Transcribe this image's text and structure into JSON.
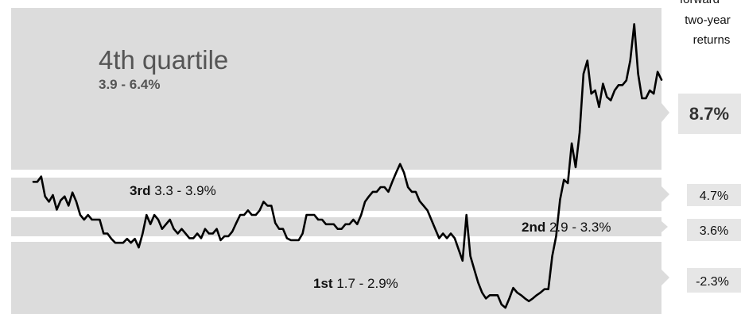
{
  "chart_data": {
    "type": "line",
    "header": [
      "forward",
      "two-year",
      "returns"
    ],
    "quartiles": [
      {
        "name": "4th quartile",
        "range": "3.9 - 6.4%",
        "return": "8.7%"
      },
      {
        "name": "3rd",
        "range": "3.3 - 3.9%",
        "return": "4.7%"
      },
      {
        "name": "2nd",
        "range": "2.9 - 3.3%",
        "return": "3.6%"
      },
      {
        "name": "1st",
        "range": "1.7 - 2.9%",
        "return": "-2.3%"
      }
    ],
    "series": [
      {
        "values": [
          4.02,
          4.02,
          4.1,
          3.8,
          3.72,
          3.82,
          3.6,
          3.74,
          3.8,
          3.66,
          3.86,
          3.72,
          3.52,
          3.45,
          3.52,
          3.45,
          3.45,
          3.45,
          3.24,
          3.24,
          3.16,
          3.1,
          3.1,
          3.1,
          3.16,
          3.1,
          3.16,
          3.03,
          3.24,
          3.52,
          3.38,
          3.52,
          3.45,
          3.31,
          3.38,
          3.45,
          3.31,
          3.24,
          3.31,
          3.24,
          3.17,
          3.17,
          3.24,
          3.17,
          3.31,
          3.24,
          3.24,
          3.31,
          3.14,
          3.2,
          3.2,
          3.27,
          3.4,
          3.52,
          3.52,
          3.59,
          3.52,
          3.52,
          3.59,
          3.72,
          3.66,
          3.66,
          3.4,
          3.31,
          3.31,
          3.17,
          3.14,
          3.14,
          3.14,
          3.24,
          3.52,
          3.52,
          3.52,
          3.45,
          3.45,
          3.38,
          3.38,
          3.38,
          3.31,
          3.31,
          3.38,
          3.38,
          3.45,
          3.38,
          3.52,
          3.72,
          3.8,
          3.87,
          3.87,
          3.94,
          3.94,
          3.87,
          4.02,
          4.16,
          4.29,
          4.16,
          3.94,
          3.87,
          3.87,
          3.73,
          3.66,
          3.59,
          3.45,
          3.31,
          3.17,
          3.24,
          3.17,
          3.24,
          3.17,
          3.0,
          2.83,
          3.52,
          2.9,
          2.7,
          2.5,
          2.35,
          2.26,
          2.31,
          2.31,
          2.31,
          2.17,
          2.12,
          2.26,
          2.42,
          2.35,
          2.31,
          2.26,
          2.22,
          2.26,
          2.31,
          2.35,
          2.4,
          2.4,
          2.9,
          3.2,
          3.75,
          4.05,
          4.0,
          4.6,
          4.24,
          4.76,
          5.65,
          5.85,
          5.35,
          5.4,
          5.15,
          5.5,
          5.3,
          5.25,
          5.4,
          5.48,
          5.48,
          5.55,
          5.85,
          6.4,
          5.65,
          5.28,
          5.28,
          5.4,
          5.35,
          5.68,
          5.56
        ]
      }
    ],
    "xlabel": "",
    "ylabel": "",
    "ylim": [
      2.05,
      6.62
    ]
  }
}
